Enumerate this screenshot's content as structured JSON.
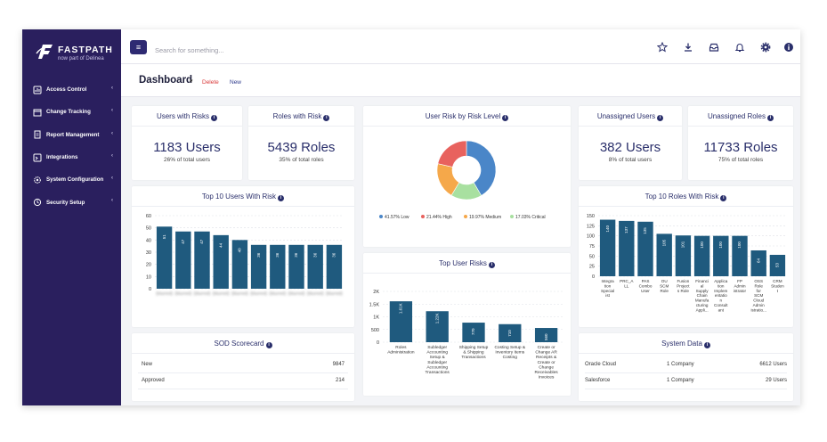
{
  "brand": {
    "name": "FASTPATH",
    "tagline": "now part of Delinea"
  },
  "sidebar": {
    "items": [
      {
        "label": "Access Control",
        "icon": "access-control-icon"
      },
      {
        "label": "Change Tracking",
        "icon": "change-tracking-icon"
      },
      {
        "label": "Report Management",
        "icon": "report-icon"
      },
      {
        "label": "Integrations",
        "icon": "integrations-icon"
      },
      {
        "label": "System Configuration",
        "icon": "settings-icon"
      },
      {
        "label": "Security Setup",
        "icon": "security-icon"
      }
    ]
  },
  "topbar": {
    "search_placeholder": "Search for something...",
    "icons": [
      "star-icon",
      "download-icon",
      "inbox-icon",
      "bell-icon",
      "gear-icon",
      "info-icon"
    ]
  },
  "subbar": {
    "title": "Dashboard",
    "delete_label": "Delete",
    "new_label": "New"
  },
  "stats": {
    "users_with_risks": {
      "title": "Users with Risks",
      "value": "1183 Users",
      "sub": "26% of total users"
    },
    "roles_with_risk": {
      "title": "Roles with Risk",
      "value": "5439 Roles",
      "sub": "35% of total roles"
    },
    "unassigned_users": {
      "title": "Unassigned Users",
      "value": "382 Users",
      "sub": "8% of total users"
    },
    "unassigned_roles": {
      "title": "Unassigned Roles",
      "value": "11733 Roles",
      "sub": "75% of total roles"
    }
  },
  "sod": {
    "title": "SOD Scorecard",
    "rows": [
      {
        "label": "New",
        "value": "9847"
      },
      {
        "label": "Approved",
        "value": "214"
      }
    ]
  },
  "system_data": {
    "title": "System Data",
    "rows": [
      {
        "system": "Oracle Cloud",
        "companies": "1 Company",
        "users": "6612 Users"
      },
      {
        "system": "Salesforce",
        "companies": "1 Company",
        "users": "29 Users"
      }
    ]
  },
  "colors": {
    "sidebar": "#2a1f5e",
    "bar": "#1f5a7e",
    "accent": "#2e2a72",
    "delete": "#d93a3a"
  },
  "chart_data": [
    {
      "id": "top_users",
      "type": "bar",
      "title": "Top 10 Users With Risk",
      "categories": [
        "(blurred)",
        "(blurred)",
        "(blurred)",
        "(blurred)",
        "(blurred)",
        "(blurred)",
        "(blurred)",
        "(blurred)",
        "(blurred)",
        "(blurred)"
      ],
      "values": [
        51,
        47,
        47,
        44,
        40,
        36,
        36,
        36,
        36,
        36
      ],
      "value_labels": [
        "51",
        "47",
        "47",
        "44",
        "40",
        "36",
        "36",
        "36",
        "36",
        "36"
      ],
      "yticks": [
        "0",
        "10",
        "20",
        "30",
        "40",
        "50",
        "60"
      ],
      "ylim": [
        0,
        60
      ]
    },
    {
      "id": "risk_level",
      "type": "pie",
      "title": "User Risk by Risk Level",
      "slices": [
        {
          "label": "Low",
          "value": 41.57,
          "legend": "41.57% Low",
          "color": "#4a86c8"
        },
        {
          "label": "Critical",
          "value": 17.03,
          "legend": "17.03% Critical",
          "color": "#a8e0a0"
        },
        {
          "label": "Medium",
          "value": 19.97,
          "legend": "19.97% Medium",
          "color": "#f5a84a"
        },
        {
          "label": "High",
          "value": 21.44,
          "legend": "21.44% High",
          "color": "#e8625e"
        }
      ]
    },
    {
      "id": "top_risks",
      "type": "bar",
      "title": "Top User Risks",
      "categories": [
        [
          "Roles",
          "Administration"
        ],
        [
          "Subledger",
          "Accounting",
          "Setup &",
          "Subledger",
          "Accounting",
          "Transactions"
        ],
        [
          "Shipping Setup",
          "& Shipping",
          "Transactions"
        ],
        [
          "Costing Setup &",
          "Inventory Items",
          "Costing"
        ],
        [
          "Create or",
          "Change AR",
          "Receipts &",
          "Create or",
          "Change",
          "Receivables",
          "Invoices"
        ]
      ],
      "values": [
        1610,
        1220,
        770,
        710,
        560
      ],
      "value_labels": [
        "1.61K",
        "1.22K",
        "770",
        "710",
        "560"
      ],
      "yticks": [
        "0",
        "500",
        "1K",
        "1.5K",
        "2K"
      ],
      "ylim": [
        0,
        2000
      ]
    },
    {
      "id": "top_roles",
      "type": "bar",
      "title": "Top 10 Roles With Risk",
      "categories": [
        [
          "Integra",
          "tion",
          "Special",
          "ist"
        ],
        [
          "PRC_A",
          "LL"
        ],
        [
          "PAS",
          "Combo",
          "User"
        ],
        [
          "OU",
          "SCM",
          "Role"
        ],
        [
          "Fusion",
          "Project",
          "s Role"
        ],
        [
          "Financi",
          "al",
          "Supply",
          "Chain",
          "Manufa",
          "cturing",
          "Appli..."
        ],
        [
          "Applica",
          "tion",
          "Implem",
          "entatio",
          "n",
          "Consult",
          "ant"
        ],
        [
          "FP",
          "Admin",
          "istrator"
        ],
        [
          "OSS",
          "Role",
          "for",
          "SCM",
          "Cloud",
          "Admin",
          "istratio..."
        ],
        [
          "CRM",
          "Studen",
          "t"
        ]
      ],
      "values": [
        140,
        137,
        135,
        105,
        101,
        100,
        100,
        100,
        64,
        53
      ],
      "value_labels": [
        "140",
        "137",
        "135",
        "105",
        "101",
        "100",
        "100",
        "100",
        "64",
        "53"
      ],
      "yticks": [
        "0",
        "25",
        "50",
        "75",
        "100",
        "125",
        "150"
      ],
      "ylim": [
        0,
        150
      ]
    }
  ]
}
